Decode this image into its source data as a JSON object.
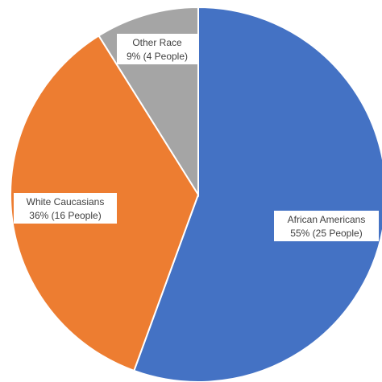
{
  "chart_data": {
    "type": "pie",
    "slices": [
      {
        "name": "African Americans",
        "percent_label": "55% (25 People)",
        "value": 25,
        "color": "#4472C4"
      },
      {
        "name": "White Caucasians",
        "percent_label": "36% (16 People)",
        "value": 16,
        "color": "#ED7D31"
      },
      {
        "name": "Other Race",
        "percent_label": "9% (4 People)",
        "value": 4,
        "color": "#A5A5A5"
      }
    ],
    "start_direction": "top",
    "direction": "clockwise"
  }
}
